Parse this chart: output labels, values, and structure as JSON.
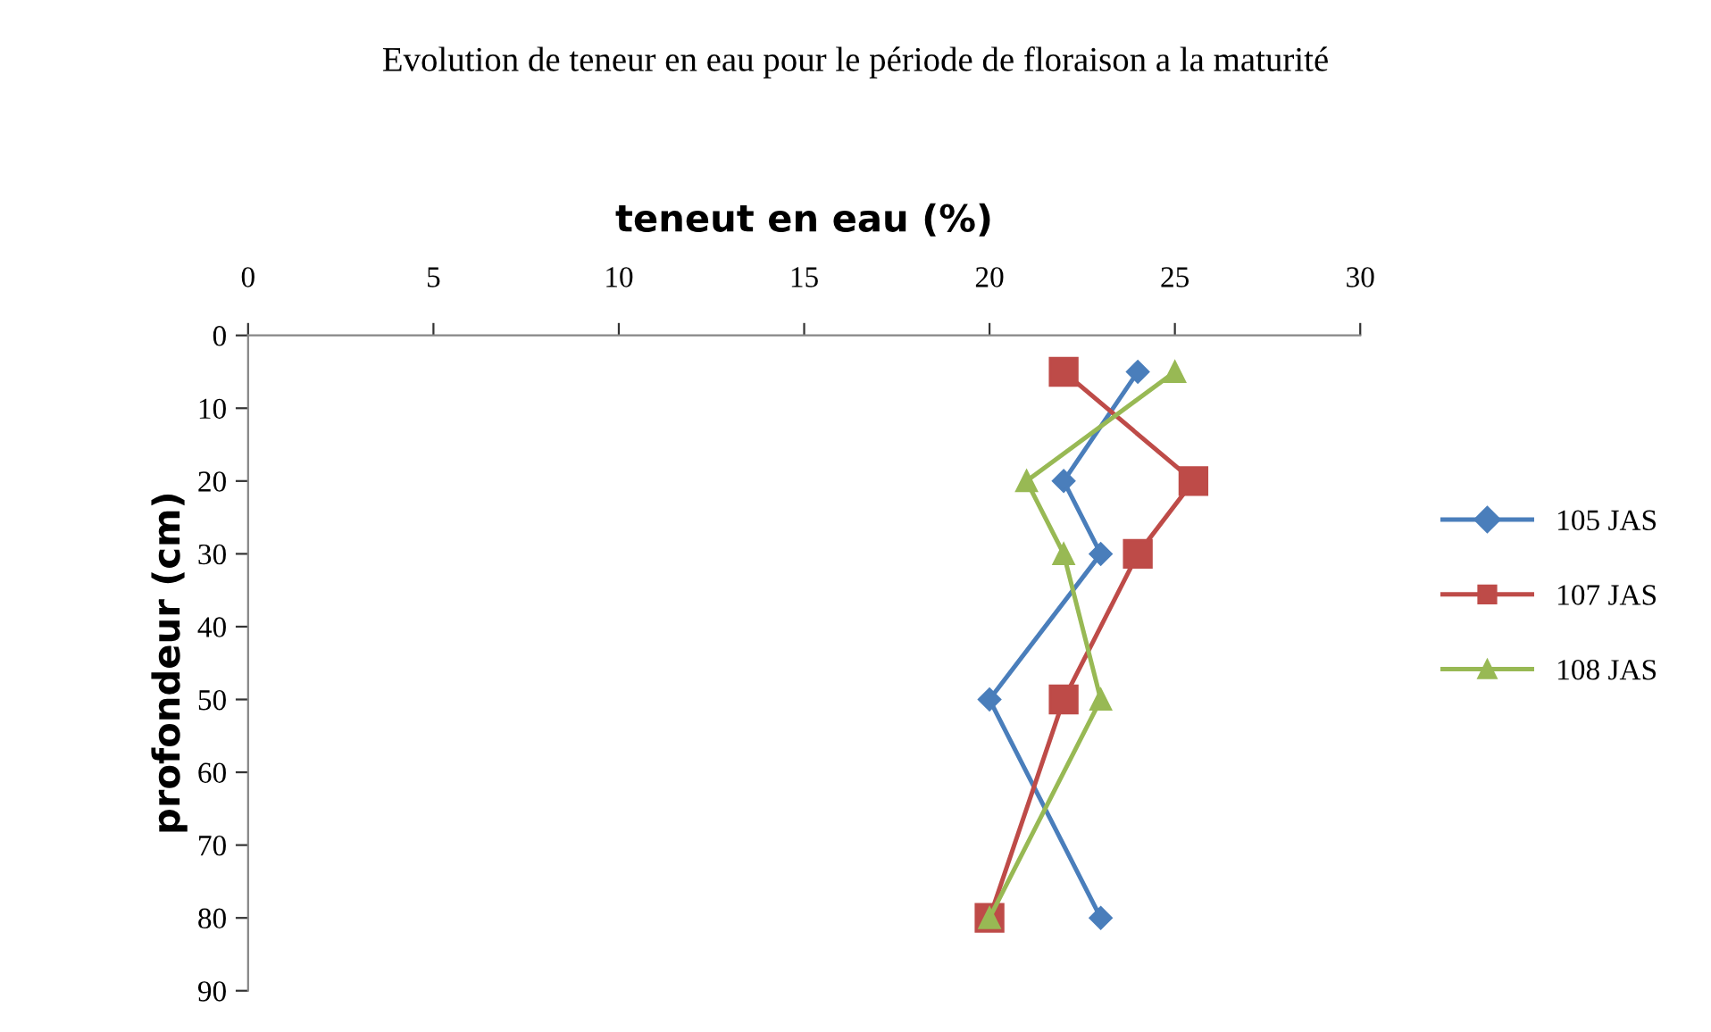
{
  "chart_data": {
    "type": "line",
    "title": "Evolution de teneur en eau pour le période de floraison a la maturité",
    "xlabel": "teneut en eau (%)",
    "ylabel": "profondeur (cm)",
    "xlim": [
      0,
      30
    ],
    "xticks": [
      0,
      5,
      10,
      15,
      20,
      25,
      30
    ],
    "ylim": [
      90,
      0
    ],
    "yticks": [
      0,
      10,
      20,
      30,
      40,
      50,
      60,
      70,
      80,
      90
    ],
    "grid": false,
    "legend": "right",
    "line_style": "solid",
    "series": [
      {
        "name": "105 JAS",
        "color": "#4a7ebb",
        "marker": "diamond",
        "x": [
          24,
          22,
          23,
          20,
          23
        ],
        "values": [
          5,
          20,
          30,
          50,
          80
        ]
      },
      {
        "name": "107 JAS",
        "color": "#be4b48",
        "marker": "square",
        "x": [
          22,
          25.5,
          24,
          22,
          20
        ],
        "values": [
          5,
          20,
          30,
          50,
          80
        ]
      },
      {
        "name": "108 JAS",
        "color": "#98b954",
        "marker": "triangle",
        "x": [
          25,
          21,
          22,
          23,
          20
        ],
        "values": [
          5,
          20,
          30,
          50,
          80
        ]
      }
    ]
  }
}
